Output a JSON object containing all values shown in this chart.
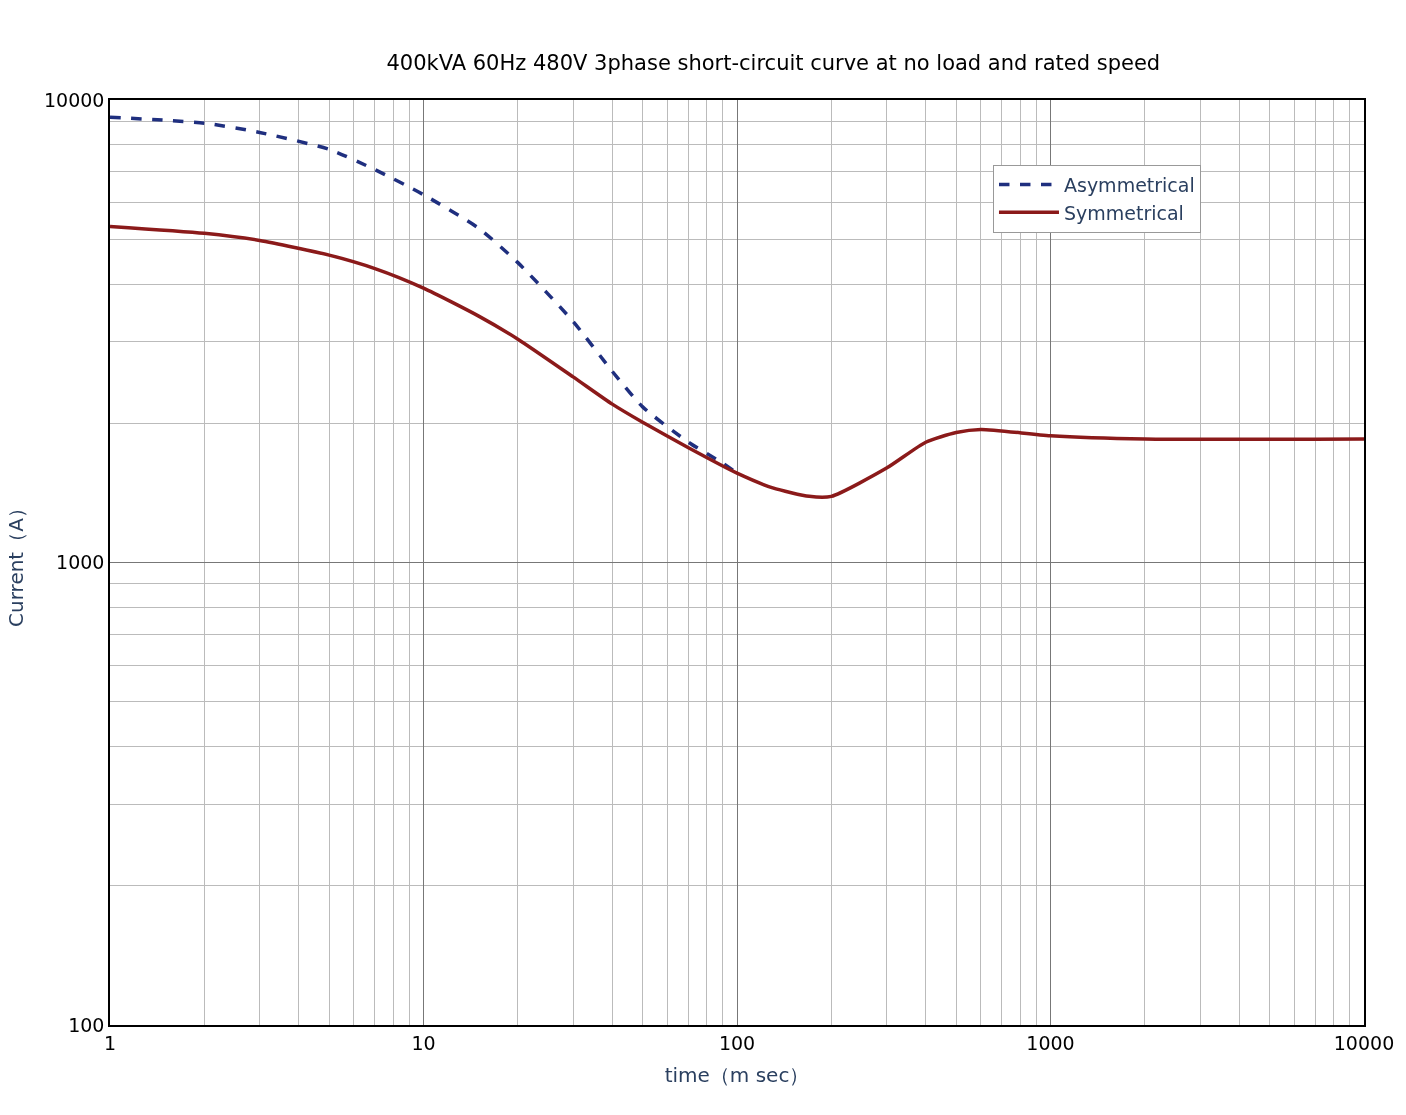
{
  "chart_data": {
    "type": "line",
    "title": "400kVA 60Hz 480V 3phase short-circuit curve at no load and rated speed",
    "xlabel": "time（m sec）",
    "ylabel": "Current（A）",
    "log": "xy",
    "xlim": [
      1,
      10000
    ],
    "ylim": [
      100,
      10000
    ],
    "xticks": [
      1,
      10,
      100,
      1000,
      10000
    ],
    "yticks": [
      100,
      1000,
      10000
    ],
    "grid": true,
    "legend": "top right",
    "series": [
      {
        "name": "Asymmetrical",
        "color": "#1f2f7f",
        "line_style": "dashed",
        "x": [
          1,
          2,
          3,
          5,
          7,
          10,
          15,
          20,
          30,
          40,
          50,
          70,
          90,
          100
        ],
        "values": [
          9180,
          8910,
          8510,
          7820,
          7070,
          6240,
          5280,
          4450,
          3320,
          2590,
          2170,
          1820,
          1640,
          1560
        ]
      },
      {
        "name": "Symmetrical",
        "color": "#8b1a1a",
        "line_style": "solid",
        "x": [
          1,
          2,
          3,
          5,
          7,
          10,
          15,
          20,
          30,
          40,
          50,
          70,
          100,
          130,
          170,
          200,
          300,
          400,
          500,
          600,
          1000,
          2000,
          10000
        ],
        "values": [
          5330,
          5150,
          4970,
          4620,
          4320,
          3920,
          3410,
          3040,
          2520,
          2200,
          2010,
          1770,
          1560,
          1450,
          1390,
          1390,
          1600,
          1820,
          1910,
          1940,
          1880,
          1850,
          1850
        ]
      }
    ]
  }
}
